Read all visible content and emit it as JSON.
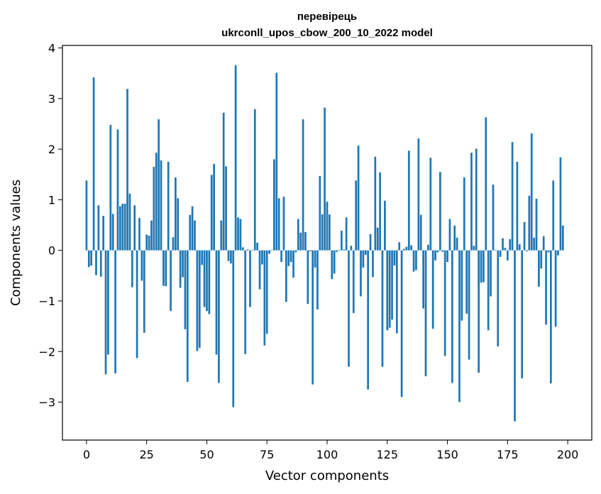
{
  "chart_data": {
    "type": "bar",
    "title": [
      "перевірець",
      "ukrconll_upos_cbow_200_10_2022 model"
    ],
    "xlabel": "Vector components",
    "ylabel": "Components values",
    "xlim": [
      -10,
      210
    ],
    "ylim": [
      -3.75,
      4.05
    ],
    "xticks": [
      0,
      25,
      50,
      75,
      100,
      125,
      150,
      175,
      200
    ],
    "yticks": [
      -3,
      -2,
      -1,
      0,
      1,
      2,
      3,
      4
    ],
    "xtick_labels": [
      "0",
      "25",
      "50",
      "75",
      "100",
      "125",
      "150",
      "175",
      "200"
    ],
    "ytick_labels": [
      "−3",
      "−2",
      "−1",
      "0",
      "1",
      "2",
      "3",
      "4"
    ],
    "grid": false,
    "bar_color": "#1f77b4",
    "values": [
      1.38,
      -0.33,
      -0.3,
      3.42,
      -0.49,
      0.89,
      -0.52,
      0.68,
      -2.45,
      -2.06,
      2.48,
      0.72,
      -2.43,
      2.39,
      0.87,
      0.92,
      0.92,
      3.19,
      1.12,
      -0.73,
      0.89,
      -2.13,
      0.64,
      -0.6,
      -1.63,
      0.31,
      0.29,
      0.59,
      1.65,
      1.93,
      2.59,
      1.78,
      -0.7,
      -0.71,
      1.75,
      -1.2,
      0.26,
      1.44,
      1.03,
      -0.74,
      -0.53,
      -1.56,
      -2.6,
      0.7,
      0.87,
      0.59,
      -1.99,
      -1.93,
      -0.29,
      -1.12,
      -1.2,
      -1.26,
      1.49,
      1.71,
      -2.06,
      -2.62,
      0.59,
      2.72,
      1.66,
      -0.21,
      -0.26,
      -3.1,
      3.66,
      0.65,
      0.62,
      0.06,
      -2.05,
      0.02,
      -1.12,
      0.01,
      2.79,
      0.15,
      -0.77,
      -0.28,
      -1.88,
      -1.65,
      -0.07,
      0.01,
      1.8,
      3.51,
      1.03,
      -0.23,
      1.06,
      -1.02,
      -0.31,
      -0.23,
      -0.54,
      -0.04,
      0.62,
      0.35,
      2.59,
      0.36,
      -1.06,
      -0.02,
      -2.65,
      -0.34,
      -1.17,
      1.47,
      0.71,
      2.82,
      0.96,
      0.71,
      -0.57,
      -0.46,
      -0.03,
      0.01,
      0.39,
      0.02,
      0.65,
      -2.3,
      0.09,
      -1.24,
      1.38,
      2.07,
      -0.91,
      -0.34,
      -0.09,
      -2.75,
      0.32,
      -0.53,
      1.85,
      0.45,
      1.54,
      -2.3,
      0.98,
      -1.58,
      -1.53,
      -1.37,
      -0.3,
      -1.64,
      0.16,
      -2.9,
      0.03,
      0.07,
      1.97,
      0.1,
      -0.42,
      -0.39,
      2.21,
      0.7,
      -1.15,
      -2.49,
      0.11,
      1.83,
      -1.55,
      -0.2,
      -0.04,
      1.55,
      -0.03,
      -2.09,
      -0.23,
      0.62,
      -2.62,
      0.49,
      0.25,
      -3.0,
      -1.39,
      1.44,
      -1.25,
      -2.16,
      1.93,
      0.09,
      2.01,
      -2.42,
      -0.64,
      -0.63,
      2.63,
      -1.58,
      -0.91,
      1.3,
      0.01,
      -1.9,
      -0.13,
      0.24,
      0.05,
      -0.2,
      0.22,
      2.14,
      -3.38,
      1.75,
      0.12,
      -2.53,
      0.56,
      -0.02,
      1.08,
      2.31,
      0.25,
      1.02,
      -0.72,
      -0.36,
      0.28,
      -1.47,
      -0.04,
      -2.63,
      1.38,
      -1.51,
      -0.1,
      1.84,
      0.49
    ]
  }
}
